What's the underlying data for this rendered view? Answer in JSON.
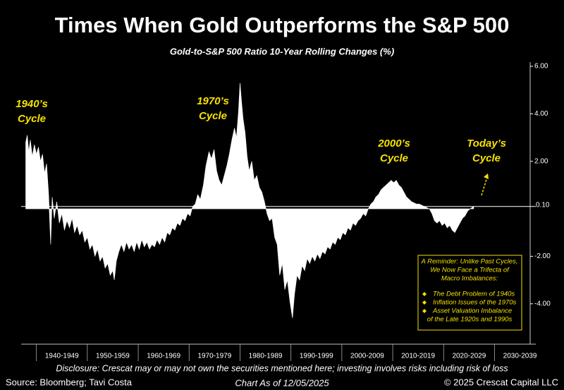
{
  "chart_data": {
    "type": "area",
    "title": "Times When Gold Outperforms the S&P 500",
    "subtitle": "Gold-to-S&P 500 Ratio 10-Year Rolling Changes (%)",
    "x": [
      1937.9,
      1938.2,
      1938.5,
      1938.8,
      1939.2,
      1939.6,
      1940,
      1940.4,
      1940.8,
      1941.2,
      1941.6,
      1942,
      1942.4,
      1942.8,
      1943.1,
      1943.5,
      1944,
      1944.5,
      1945,
      1945.5,
      1946,
      1946.5,
      1947,
      1947.5,
      1948,
      1948.5,
      1949,
      1949.5,
      1950,
      1950.5,
      1951,
      1951.5,
      1952,
      1952.5,
      1953,
      1953.5,
      1954,
      1954.5,
      1955,
      1955.3,
      1955.7,
      1956.2,
      1956.7,
      1957.2,
      1957.7,
      1958.2,
      1958.7,
      1959.2,
      1959.7,
      1960.2,
      1960.7,
      1961.2,
      1961.7,
      1962.2,
      1962.7,
      1963.2,
      1963.7,
      1964.2,
      1964.7,
      1965.2,
      1965.7,
      1966.2,
      1966.7,
      1967.2,
      1967.7,
      1968.2,
      1968.7,
      1969.2,
      1969.7,
      1970.2,
      1970.7,
      1971.2,
      1971.7,
      1972.2,
      1972.8,
      1973.3,
      1973.9,
      1974.4,
      1974.9,
      1975.4,
      1975.9,
      1976.4,
      1976.9,
      1977.4,
      1977.9,
      1978.4,
      1978.9,
      1979.3,
      1979.7,
      1980,
      1980.3,
      1980.6,
      1981,
      1981.4,
      1981.8,
      1982.3,
      1982.8,
      1983.3,
      1983.8,
      1984.3,
      1984.8,
      1985.3,
      1985.8,
      1986.3,
      1986.8,
      1987.3,
      1987.8,
      1988.3,
      1988.8,
      1989.3,
      1989.8,
      1990.3,
      1990.7,
      1991.2,
      1991.7,
      1992.2,
      1992.7,
      1993.2,
      1993.7,
      1994.2,
      1994.7,
      1995.2,
      1995.7,
      1996.2,
      1996.7,
      1997.2,
      1997.7,
      1998.2,
      1998.7,
      1999.2,
      1999.7,
      2000.2,
      2000.7,
      2001.2,
      2001.7,
      2002.2,
      2002.7,
      2003.2,
      2003.7,
      2004.2,
      2004.7,
      2005.2,
      2005.7,
      2006.2,
      2006.7,
      2007.2,
      2007.7,
      2008.2,
      2008.7,
      2009.2,
      2009.7,
      2010.2,
      2010.7,
      2011.2,
      2011.7,
      2012.2,
      2012.7,
      2013.2,
      2013.7,
      2014.2,
      2014.7,
      2015.2,
      2015.7,
      2016.2,
      2016.7,
      2017.2,
      2017.7,
      2018.2,
      2018.7,
      2019.2,
      2019.7,
      2020.2,
      2020.7,
      2021.2,
      2021.7,
      2022.2,
      2022.7,
      2023.2,
      2023.7,
      2024.2,
      2024.7,
      2025.2,
      2025.9
    ],
    "series": [
      {
        "color": "#ffffff",
        "values": [
          2.8,
          3.1,
          2.4,
          2.9,
          2.2,
          2.7,
          2.3,
          2.6,
          2.0,
          2.3,
          1.5,
          1.9,
          0.6,
          -1.5,
          0.5,
          -0.4,
          0.3,
          -0.6,
          -0.2,
          -0.9,
          -0.5,
          -0.8,
          -0.4,
          -1.0,
          -0.7,
          -1.1,
          -0.9,
          -1.4,
          -1.2,
          -1.7,
          -1.5,
          -2.0,
          -1.7,
          -2.2,
          -2.0,
          -2.5,
          -2.3,
          -2.8,
          -2.6,
          -3.0,
          -2.2,
          -1.8,
          -1.5,
          -1.8,
          -1.4,
          -1.7,
          -1.5,
          -1.8,
          -1.4,
          -1.7,
          -1.3,
          -1.6,
          -1.4,
          -1.7,
          -1.5,
          -1.6,
          -1.3,
          -1.5,
          -1.2,
          -1.4,
          -1.0,
          -1.1,
          -0.8,
          -0.9,
          -0.6,
          -0.7,
          -0.4,
          -0.5,
          -0.2,
          -0.3,
          0.1,
          0.2,
          0.6,
          0.4,
          1.0,
          1.8,
          2.4,
          2.1,
          2.5,
          1.6,
          1.2,
          1.0,
          1.4,
          1.8,
          2.3,
          2.9,
          3.4,
          3.0,
          4.1,
          5.3,
          4.5,
          3.8,
          3.2,
          2.2,
          1.6,
          2.0,
          1.2,
          1.4,
          0.9,
          0.7,
          0.3,
          -0.2,
          -0.5,
          -0.4,
          -1.2,
          -1.5,
          -2.8,
          -2.3,
          -3.4,
          -3.0,
          -3.9,
          -4.6,
          -3.6,
          -2.8,
          -3.0,
          -2.4,
          -2.6,
          -2.1,
          -2.3,
          -2.0,
          -2.2,
          -1.9,
          -2.1,
          -1.8,
          -1.9,
          -1.6,
          -1.7,
          -1.4,
          -1.5,
          -1.2,
          -1.3,
          -1.0,
          -1.1,
          -0.8,
          -0.9,
          -0.6,
          -0.7,
          -0.5,
          -0.4,
          -0.2,
          -0.3,
          0.0,
          0.2,
          0.3,
          0.5,
          0.6,
          0.8,
          0.9,
          1.0,
          1.1,
          1.2,
          1.1,
          1.2,
          1.0,
          0.9,
          0.7,
          0.5,
          0.4,
          0.3,
          0.25,
          0.2,
          0.2,
          0.15,
          0.1,
          0.05,
          0.0,
          -0.2,
          -0.5,
          -0.6,
          -0.5,
          -0.7,
          -0.6,
          -0.8,
          -0.7,
          -0.9,
          -1.0,
          -0.8,
          -0.6,
          -0.4,
          -0.3,
          -0.1,
          0.0,
          0.1
        ]
      }
    ],
    "xlim": [
      1937,
      2037
    ],
    "xticks": [
      {
        "value": 1945,
        "label": "1940-1949"
      },
      {
        "value": 1955,
        "label": "1950-1959"
      },
      {
        "value": 1965,
        "label": "1960-1969"
      },
      {
        "value": 1975,
        "label": "1970-1979"
      },
      {
        "value": 1985,
        "label": "1980-1989"
      },
      {
        "value": 1995,
        "label": "1990-1999"
      },
      {
        "value": 2005,
        "label": "2000-2009"
      },
      {
        "value": 2015,
        "label": "2010-2019"
      },
      {
        "value": 2025,
        "label": "2020-2029"
      },
      {
        "value": 2035,
        "label": "2030-2039"
      }
    ],
    "ylim": [
      -5.7,
      6.18
    ],
    "yticks": [
      {
        "value": 6,
        "label": "6.00"
      },
      {
        "value": 4,
        "label": "4.00"
      },
      {
        "value": 2,
        "label": "2.00"
      },
      {
        "value": -2,
        "label": "-2.00"
      },
      {
        "value": -4,
        "label": "-4.00"
      }
    ],
    "current_value": {
      "value": 0.1,
      "label": "0.10"
    },
    "annotations": [
      [
        "1940’s",
        "Cycle"
      ],
      [
        "1970’s",
        "Cycle"
      ],
      [
        "2000’s",
        "Cycle"
      ],
      [
        "Today’s",
        "Cycle"
      ]
    ],
    "note_box": {
      "intro": [
        "A Reminder: Unlike Past Cycles,",
        "We Now Face a Trifecta of",
        "Macro Imbalances:"
      ],
      "items": [
        [
          "The Debt Problem of 1940s"
        ],
        [
          "Inflation Issues of the 1970s"
        ],
        [
          "Asset Valuation Imbalance",
          "of the Late 1920s and 1990s"
        ]
      ]
    },
    "disclosure": "Disclosure: Crescat may or may not own the securities mentioned here; investing involves risks including risk of loss",
    "source": "Source: Bloomberg; Tavi Costa",
    "date_note": "Chart As of 12/05/2025",
    "copyright": "© 2025 Crescat Capital LLC"
  }
}
